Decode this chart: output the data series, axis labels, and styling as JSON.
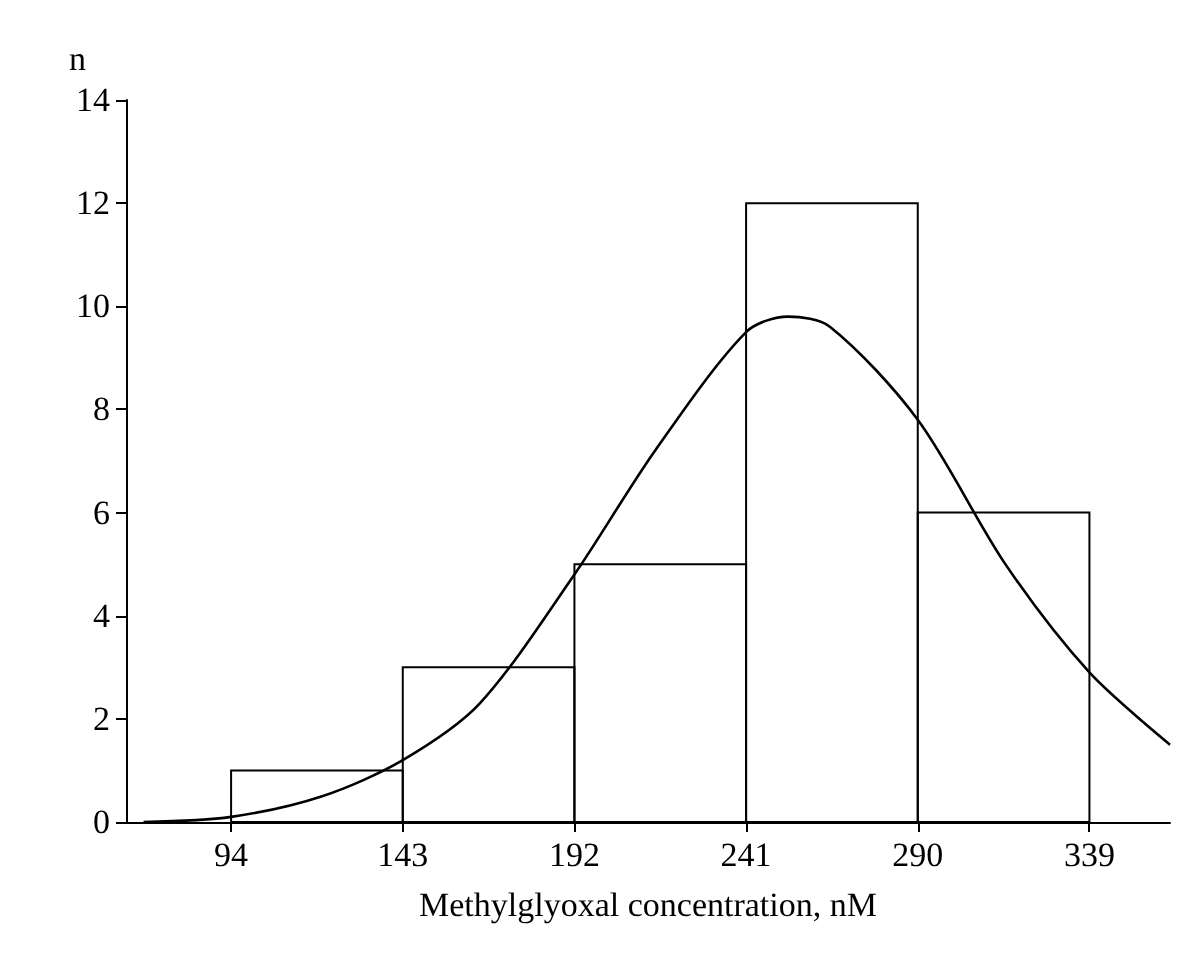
{
  "chart_data": {
    "type": "histogram",
    "xlabel": "Methylglyoxal concentration, nM",
    "ylabel": "n",
    "bins": [
      94,
      143,
      192,
      241,
      290,
      339
    ],
    "values": [
      1,
      3,
      5,
      12,
      6
    ],
    "color": "#000000",
    "series": [
      {
        "type": "line",
        "color": "#000000",
        "x": [
          69,
          94,
          120,
          143,
          165,
          192,
          215,
          241,
          253,
          265,
          290,
          315,
          339,
          362
        ],
        "values": [
          0,
          0.1,
          0.5,
          1.2,
          2.3,
          4.8,
          7.2,
          9.5,
          9.8,
          9.6,
          7.8,
          5.0,
          2.9,
          1.5
        ]
      }
    ],
    "xlim": [
      64,
      362
    ],
    "xticks": [
      94,
      143,
      192,
      241,
      290,
      339
    ],
    "ylim": [
      0,
      14
    ],
    "yticks": [
      0,
      2,
      4,
      6,
      8,
      10,
      12,
      14
    ],
    "grid": false,
    "marker": "none",
    "line_style": "solid"
  }
}
